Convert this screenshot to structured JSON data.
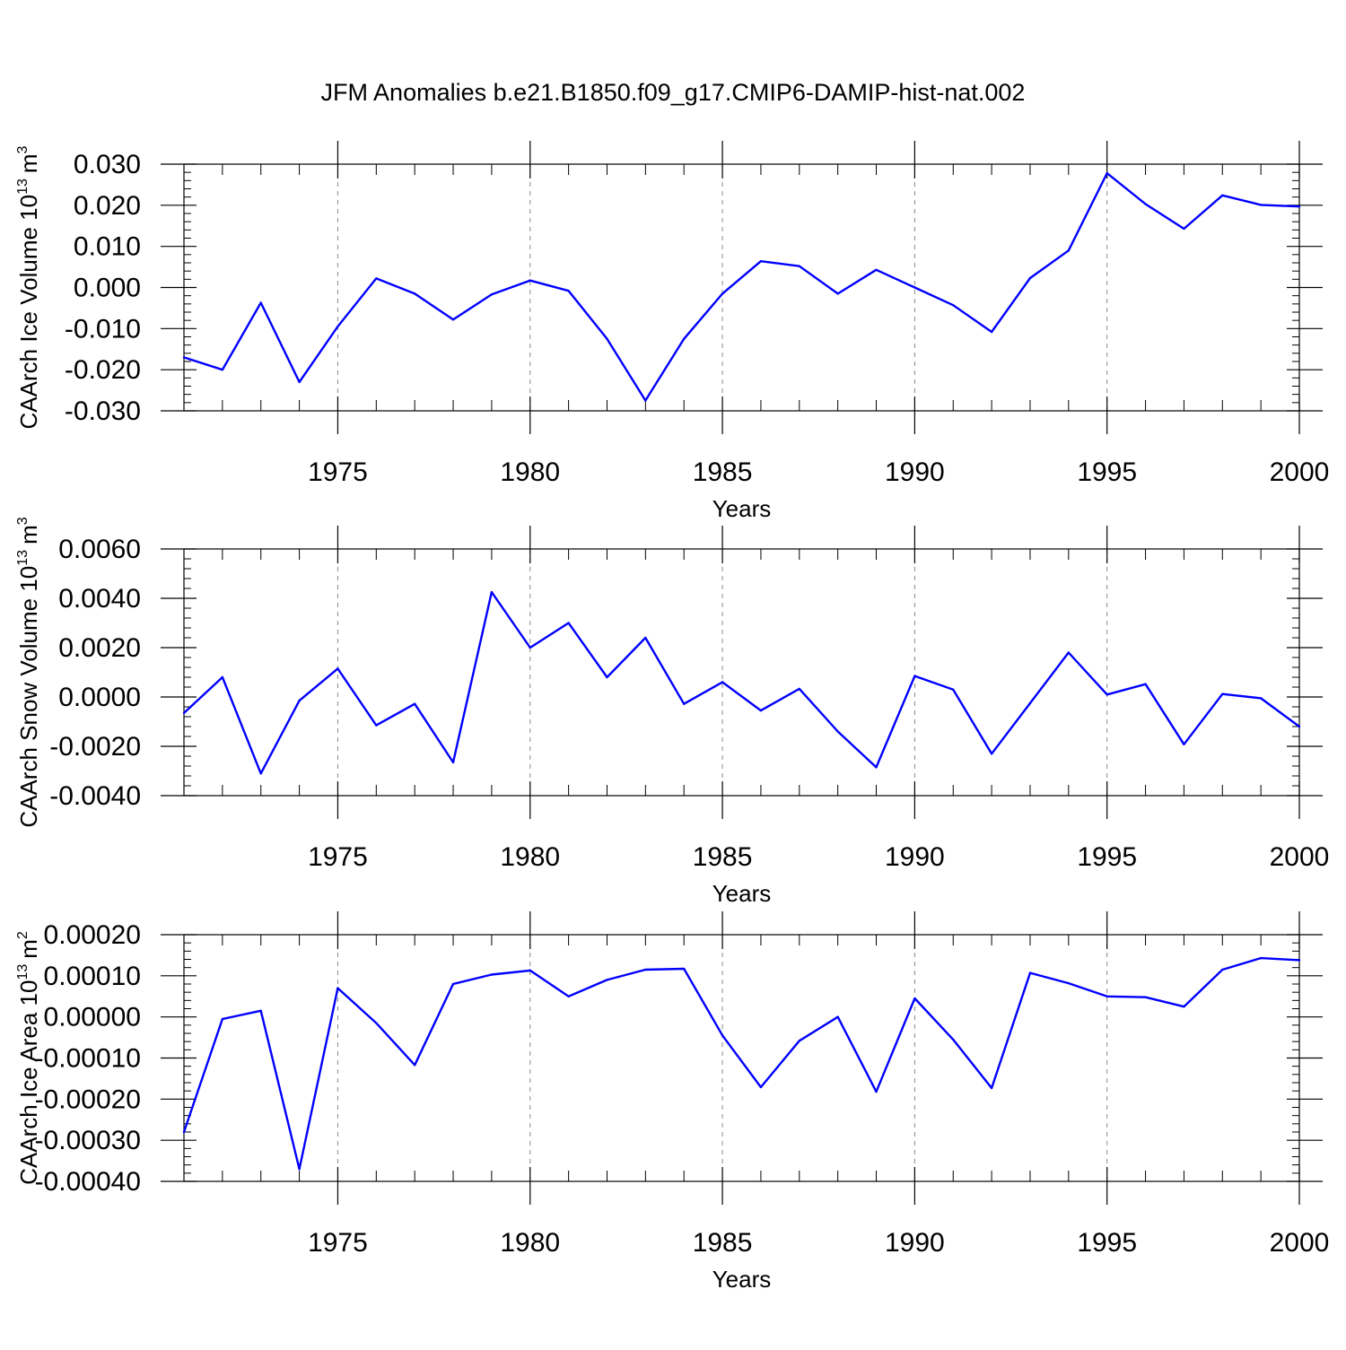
{
  "title": "JFM Anomalies b.e21.B1850.f09_g17.CMIP6-DAMIP-hist-nat.002",
  "colors": {
    "line": "#0000ff",
    "axis": "#000000",
    "grid": "#888888"
  },
  "chart_data": [
    {
      "type": "line",
      "ylabel": "CAArch Ice Volume 10",
      "ylabel_unit": "m",
      "ylabel_exp1": "13",
      "ylabel_exp2": "3",
      "xlabel": "Years",
      "xlim": [
        1971,
        2000
      ],
      "ylim": [
        -0.03,
        0.03
      ],
      "yticks": [
        -0.03,
        -0.02,
        -0.01,
        0.0,
        0.01,
        0.02,
        0.03
      ],
      "ytick_labels": [
        "-0.030",
        "-0.020",
        "-0.010",
        "0.000",
        "0.010",
        "0.020",
        "0.030"
      ],
      "xticks": [
        1975,
        1980,
        1985,
        1990,
        1995,
        2000
      ],
      "xtick_labels": [
        "1975",
        "1980",
        "1985",
        "1990",
        "1995",
        "2000"
      ],
      "grid": "vertical-dashed",
      "series": [
        {
          "name": "CAArch Ice Volume",
          "x": [
            1971,
            1972,
            1973,
            1974,
            1975,
            1976,
            1977,
            1978,
            1979,
            1980,
            1981,
            1982,
            1983,
            1984,
            1985,
            1986,
            1987,
            1988,
            1989,
            1990,
            1991,
            1992,
            1993,
            1994,
            1995,
            1996,
            1997,
            1998,
            1999,
            2000
          ],
          "values": [
            -0.017,
            -0.02,
            -0.0037,
            -0.023,
            -0.0095,
            0.0022,
            -0.0015,
            -0.0078,
            -0.0017,
            0.0017,
            -0.0008,
            -0.0125,
            -0.0275,
            -0.0125,
            -0.0015,
            0.0064,
            0.0052,
            -0.0015,
            0.0043,
            0.0,
            -0.0043,
            -0.0108,
            0.0023,
            0.009,
            0.0278,
            0.0203,
            0.0143,
            0.0224,
            0.0201,
            0.0197
          ]
        }
      ]
    },
    {
      "type": "line",
      "ylabel": "CAArch Snow Volume 10",
      "ylabel_unit": "m",
      "ylabel_exp1": "13",
      "ylabel_exp2": "3",
      "xlabel": "Years",
      "xlim": [
        1971,
        2000
      ],
      "ylim": [
        -0.004,
        0.006
      ],
      "yticks": [
        -0.004,
        -0.002,
        0.0,
        0.002,
        0.004,
        0.006
      ],
      "ytick_labels": [
        "-0.0040",
        "-0.0020",
        "0.0000",
        "0.0020",
        "0.0040",
        "0.0060"
      ],
      "xticks": [
        1975,
        1980,
        1985,
        1990,
        1995,
        2000
      ],
      "xtick_labels": [
        "1975",
        "1980",
        "1985",
        "1990",
        "1995",
        "2000"
      ],
      "grid": "vertical-dashed",
      "series": [
        {
          "name": "CAArch Snow Volume",
          "x": [
            1971,
            1972,
            1973,
            1974,
            1975,
            1976,
            1977,
            1978,
            1979,
            1980,
            1981,
            1982,
            1983,
            1984,
            1985,
            1986,
            1987,
            1988,
            1989,
            1990,
            1991,
            1992,
            1993,
            1994,
            1995,
            1996,
            1997,
            1998,
            1999,
            2000
          ],
          "values": [
            -0.00065,
            0.0008,
            -0.0031,
            -0.00015,
            0.00115,
            -0.00115,
            -0.00028,
            -0.00265,
            0.00425,
            0.002,
            0.003,
            0.0008,
            0.0024,
            -0.00028,
            0.0006,
            -0.00055,
            0.00033,
            -0.0014,
            -0.00285,
            0.00085,
            0.0003,
            -0.0023,
            -0.00025,
            0.0018,
            0.0001,
            0.00052,
            -0.00192,
            0.00012,
            -5e-05,
            -0.0012
          ]
        }
      ]
    },
    {
      "type": "line",
      "ylabel": "CAArch Ice Area 10",
      "ylabel_unit": "m",
      "ylabel_exp1": "13",
      "ylabel_exp2": "2",
      "xlabel": "Years",
      "xlim": [
        1971,
        2000
      ],
      "ylim": [
        -0.0004,
        0.0002
      ],
      "yticks": [
        -0.0004,
        -0.0003,
        -0.0002,
        -0.0001,
        0.0,
        0.0001,
        0.0002
      ],
      "ytick_labels": [
        "-0.00040",
        "-0.00030",
        "-0.00020",
        "-0.00010",
        "0.00000",
        "0.00010",
        "0.00020"
      ],
      "xticks": [
        1975,
        1980,
        1985,
        1990,
        1995,
        2000
      ],
      "xtick_labels": [
        "1975",
        "1980",
        "1985",
        "1990",
        "1995",
        "2000"
      ],
      "grid": "vertical-dashed",
      "series": [
        {
          "name": "CAArch Ice Area",
          "x": [
            1971,
            1972,
            1973,
            1974,
            1975,
            1976,
            1977,
            1978,
            1979,
            1980,
            1981,
            1982,
            1983,
            1984,
            1985,
            1986,
            1987,
            1988,
            1989,
            1990,
            1991,
            1992,
            1993,
            1994,
            1995,
            1996,
            1997,
            1998,
            1999,
            2000
          ],
          "values": [
            -0.00028,
            -5e-06,
            1.5e-05,
            -0.00037,
            7e-05,
            -1.5e-05,
            -0.000117,
            8e-05,
            0.000103,
            0.000113,
            5e-05,
            9e-05,
            0.000115,
            0.000117,
            -4.5e-05,
            -0.000171,
            -5.8e-05,
            0.0,
            -0.000182,
            4.5e-05,
            -5.5e-05,
            -0.000173,
            0.000107,
            8.2e-05,
            5e-05,
            4.8e-05,
            2.5e-05,
            0.000115,
            0.000143,
            0.000138
          ]
        }
      ]
    }
  ]
}
